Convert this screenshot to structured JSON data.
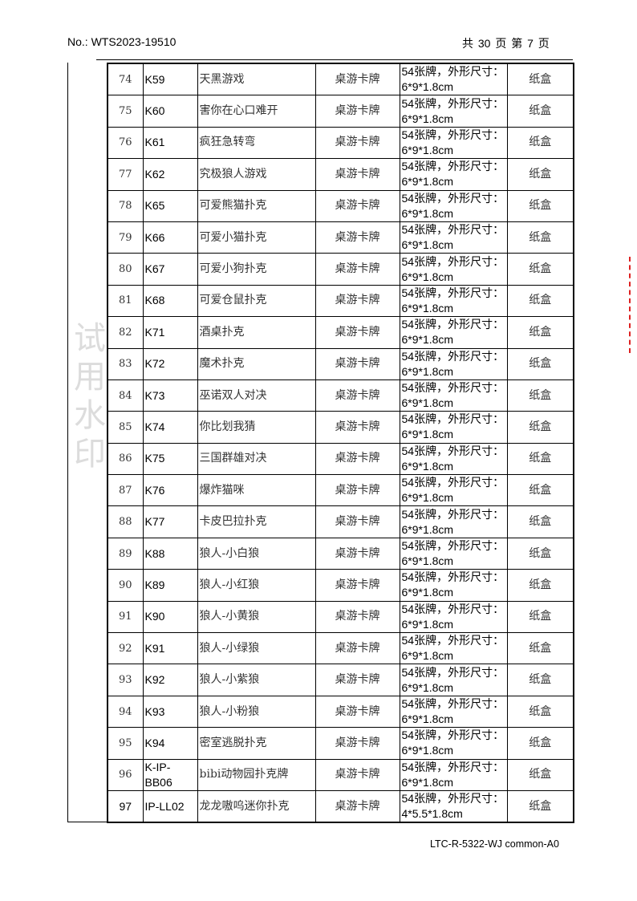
{
  "header": {
    "report_no": "No.: WTS2023-19510",
    "page_info": "共 30 页 第 7 页"
  },
  "footer": {
    "form_code": "LTC-R-5322-WJ  common-A0"
  },
  "watermark": "试用水印",
  "table": {
    "rows": [
      {
        "no": "74",
        "code": "K59",
        "name": "天黑游戏",
        "type": "桌游卡牌",
        "spec": "54张牌，外形尺寸：6*9*1.8cm",
        "pack": "纸盒"
      },
      {
        "no": "75",
        "code": "K60",
        "name": "害你在心口难开",
        "type": "桌游卡牌",
        "spec": "54张牌，外形尺寸：6*9*1.8cm",
        "pack": "纸盒"
      },
      {
        "no": "76",
        "code": "K61",
        "name": "疯狂急转弯",
        "type": "桌游卡牌",
        "spec": "54张牌，外形尺寸：6*9*1.8cm",
        "pack": "纸盒"
      },
      {
        "no": "77",
        "code": "K62",
        "name": "究极狼人游戏",
        "type": "桌游卡牌",
        "spec": "54张牌，外形尺寸：6*9*1.8cm",
        "pack": "纸盒"
      },
      {
        "no": "78",
        "code": "K65",
        "name": "可爱熊猫扑克",
        "type": "桌游卡牌",
        "spec": "54张牌，外形尺寸：6*9*1.8cm",
        "pack": "纸盒"
      },
      {
        "no": "79",
        "code": "K66",
        "name": "可爱小猫扑克",
        "type": "桌游卡牌",
        "spec": "54张牌，外形尺寸：6*9*1.8cm",
        "pack": "纸盒"
      },
      {
        "no": "80",
        "code": "K67",
        "name": "可爱小狗扑克",
        "type": "桌游卡牌",
        "spec": "54张牌，外形尺寸：6*9*1.8cm",
        "pack": "纸盒"
      },
      {
        "no": "81",
        "code": "K68",
        "name": "可爱仓鼠扑克",
        "type": "桌游卡牌",
        "spec": "54张牌，外形尺寸：6*9*1.8cm",
        "pack": "纸盒"
      },
      {
        "no": "82",
        "code": "K71",
        "name": "酒桌扑克",
        "type": "桌游卡牌",
        "spec": "54张牌，外形尺寸：6*9*1.8cm",
        "pack": "纸盒"
      },
      {
        "no": "83",
        "code": "K72",
        "name": "魔术扑克",
        "type": "桌游卡牌",
        "spec": "54张牌，外形尺寸：6*9*1.8cm",
        "pack": "纸盒"
      },
      {
        "no": "84",
        "code": "K73",
        "name": "巫诺双人对决",
        "type": "桌游卡牌",
        "spec": "54张牌，外形尺寸：6*9*1.8cm",
        "pack": "纸盒"
      },
      {
        "no": "85",
        "code": "K74",
        "name": "你比划我猜",
        "type": "桌游卡牌",
        "spec": "54张牌，外形尺寸：6*9*1.8cm",
        "pack": "纸盒"
      },
      {
        "no": "86",
        "code": "K75",
        "name": "三国群雄对决",
        "type": "桌游卡牌",
        "spec": "54张牌，外形尺寸：6*9*1.8cm",
        "pack": "纸盒"
      },
      {
        "no": "87",
        "code": "K76",
        "name": "爆炸猫咪",
        "type": "桌游卡牌",
        "spec": "54张牌，外形尺寸：6*9*1.8cm",
        "pack": "纸盒"
      },
      {
        "no": "88",
        "code": "K77",
        "name": "卡皮巴拉扑克",
        "type": "桌游卡牌",
        "spec": "54张牌，外形尺寸：6*9*1.8cm",
        "pack": "纸盒"
      },
      {
        "no": "89",
        "code": "K88",
        "name": "狼人-小白狼",
        "type": "桌游卡牌",
        "spec": "54张牌，外形尺寸：6*9*1.8cm",
        "pack": "纸盒"
      },
      {
        "no": "90",
        "code": "K89",
        "name": "狼人-小红狼",
        "type": "桌游卡牌",
        "spec": "54张牌，外形尺寸：6*9*1.8cm",
        "pack": "纸盒"
      },
      {
        "no": "91",
        "code": "K90",
        "name": "狼人-小黄狼",
        "type": "桌游卡牌",
        "spec": "54张牌，外形尺寸：6*9*1.8cm",
        "pack": "纸盒"
      },
      {
        "no": "92",
        "code": "K91",
        "name": "狼人-小绿狼",
        "type": "桌游卡牌",
        "spec": "54张牌，外形尺寸：6*9*1.8cm",
        "pack": "纸盒"
      },
      {
        "no": "93",
        "code": "K92",
        "name": "狼人-小紫狼",
        "type": "桌游卡牌",
        "spec": "54张牌，外形尺寸：6*9*1.8cm",
        "pack": "纸盒"
      },
      {
        "no": "94",
        "code": "K93",
        "name": "狼人-小粉狼",
        "type": "桌游卡牌",
        "spec": "54张牌，外形尺寸：6*9*1.8cm",
        "pack": "纸盒"
      },
      {
        "no": "95",
        "code": "K94",
        "name": "密室逃脱扑克",
        "type": "桌游卡牌",
        "spec": "54张牌，外形尺寸：6*9*1.8cm",
        "pack": "纸盒"
      },
      {
        "no": "96",
        "code": "K-IP-BB06",
        "name": "bibi动物园扑克牌",
        "type": "桌游卡牌",
        "spec": "54张牌，外形尺寸：6*9*1.8cm",
        "pack": "纸盒"
      },
      {
        "no": "97",
        "code": "IP-LL02",
        "name": "龙龙嗷呜迷你扑克",
        "type": "桌游卡牌",
        "spec": "54张牌，外形尺寸：4*5.5*1.8cm",
        "pack": "纸盒"
      }
    ]
  }
}
